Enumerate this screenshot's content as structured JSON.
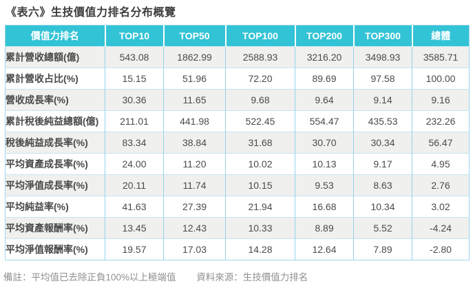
{
  "chart_data": {
    "type": "table",
    "title": "《表六》生技價值力排名分布概覽",
    "columns": [
      "價值力排名",
      "TOP10",
      "TOP50",
      "TOP100",
      "TOP200",
      "TOP300",
      "總體"
    ],
    "rows": [
      {
        "label": "累計營收總額(億)",
        "values": [
          "543.08",
          "1862.99",
          "2588.93",
          "3216.20",
          "3498.93",
          "3585.71"
        ]
      },
      {
        "label": "累計營收占比(%)",
        "values": [
          "15.15",
          "51.96",
          "72.20",
          "89.69",
          "97.58",
          "100.00"
        ]
      },
      {
        "label": "營收成長率(%)",
        "values": [
          "30.36",
          "11.65",
          "9.68",
          "9.64",
          "9.14",
          "9.16"
        ]
      },
      {
        "label": "累計稅後純益總額(億)",
        "values": [
          "211.01",
          "441.98",
          "522.45",
          "554.47",
          "435.53",
          "232.26"
        ]
      },
      {
        "label": "稅後純益成長率(%)",
        "values": [
          "83.34",
          "38.84",
          "31.68",
          "30.70",
          "30.34",
          "56.47"
        ]
      },
      {
        "label": "平均資產成長率(%)",
        "values": [
          "24.00",
          "11.20",
          "10.02",
          "10.13",
          "9.17",
          "4.95"
        ]
      },
      {
        "label": "平均淨值成長率(%)",
        "values": [
          "20.11",
          "11.74",
          "10.15",
          "9.53",
          "8.63",
          "2.76"
        ]
      },
      {
        "label": "平均純益率(%)",
        "values": [
          "41.63",
          "27.39",
          "21.94",
          "16.68",
          "10.34",
          "3.02"
        ]
      },
      {
        "label": "平均資產報酬率(%)",
        "values": [
          "13.45",
          "12.43",
          "10.33",
          "8.89",
          "5.52",
          "-4.24"
        ]
      },
      {
        "label": "平均淨值報酬率(%)",
        "values": [
          "19.57",
          "17.03",
          "14.28",
          "12.64",
          "7.89",
          "-2.80"
        ]
      }
    ],
    "note": "備註：平均值已去除正負100%以上極端值",
    "source": "資料來源：生技價值力排名",
    "layout": {
      "header_bg": "#33c3d6",
      "header_text": "#ffffff",
      "row_alt_bg": "#f0f0ee",
      "border_color": "#9ed6ea",
      "grid": true
    }
  }
}
